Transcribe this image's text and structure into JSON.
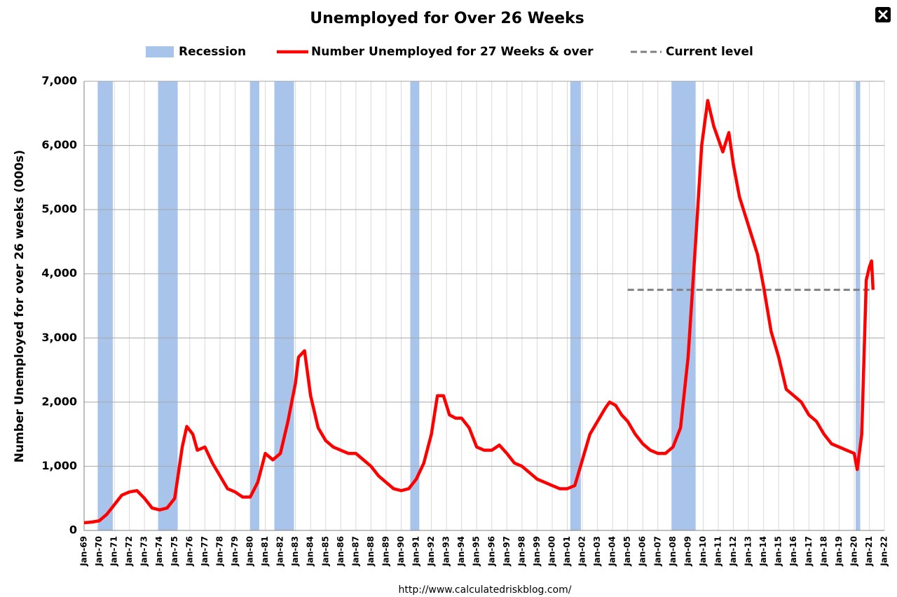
{
  "chart_data": {
    "type": "line",
    "title": "Unemployed for Over 26 Weeks",
    "y_label": "Number Unemployed for over 26 weeks (000s)",
    "source": "http://www.calculatedriskblog.com/",
    "xlim": [
      1969,
      2022
    ],
    "ylim": [
      0,
      7000
    ],
    "yticks": [
      0,
      {
        "value": 1000,
        "label": "1,000"
      },
      {
        "value": 2000,
        "label": "2,000"
      },
      {
        "value": 3000,
        "label": "3,000"
      },
      {
        "value": 4000,
        "label": "4,000"
      },
      {
        "value": 5000,
        "label": "5,000"
      },
      {
        "value": 6000,
        "label": "6,000"
      },
      {
        "value": 7000,
        "label": "7,000"
      }
    ],
    "xticks": [
      {
        "value": 1969,
        "label": "Jan-69"
      },
      {
        "value": 1970,
        "label": "Jan-70"
      },
      {
        "value": 1971,
        "label": "Jan-71"
      },
      {
        "value": 1972,
        "label": "Jan-72"
      },
      {
        "value": 1973,
        "label": "Jan-73"
      },
      {
        "value": 1974,
        "label": "Jan-74"
      },
      {
        "value": 1975,
        "label": "Jan-75"
      },
      {
        "value": 1976,
        "label": "Jan-76"
      },
      {
        "value": 1977,
        "label": "Jan-77"
      },
      {
        "value": 1978,
        "label": "Jan-78"
      },
      {
        "value": 1979,
        "label": "Jan-79"
      },
      {
        "value": 1980,
        "label": "Jan-80"
      },
      {
        "value": 1981,
        "label": "Jan-81"
      },
      {
        "value": 1982,
        "label": "Jan-82"
      },
      {
        "value": 1983,
        "label": "Jan-83"
      },
      {
        "value": 1984,
        "label": "Jan-84"
      },
      {
        "value": 1985,
        "label": "Jan-85"
      },
      {
        "value": 1986,
        "label": "Jan-86"
      },
      {
        "value": 1987,
        "label": "Jan-87"
      },
      {
        "value": 1988,
        "label": "Jan-88"
      },
      {
        "value": 1989,
        "label": "Jan-89"
      },
      {
        "value": 1990,
        "label": "Jan-90"
      },
      {
        "value": 1991,
        "label": "Jan-91"
      },
      {
        "value": 1992,
        "label": "Jan-92"
      },
      {
        "value": 1993,
        "label": "Jan-93"
      },
      {
        "value": 1994,
        "label": "Jan-94"
      },
      {
        "value": 1995,
        "label": "Jan-95"
      },
      {
        "value": 1996,
        "label": "Jan-96"
      },
      {
        "value": 1997,
        "label": "Jan-97"
      },
      {
        "value": 1998,
        "label": "Jan-98"
      },
      {
        "value": 1999,
        "label": "Jan-99"
      },
      {
        "value": 2000,
        "label": "Jan-00"
      },
      {
        "value": 2001,
        "label": "Jan-01"
      },
      {
        "value": 2002,
        "label": "Jan-02"
      },
      {
        "value": 2003,
        "label": "Jan-03"
      },
      {
        "value": 2004,
        "label": "Jan-04"
      },
      {
        "value": 2005,
        "label": "Jan-05"
      },
      {
        "value": 2006,
        "label": "Jan-06"
      },
      {
        "value": 2007,
        "label": "Jan-07"
      },
      {
        "value": 2008,
        "label": "Jan-08"
      },
      {
        "value": 2009,
        "label": "Jan-09"
      },
      {
        "value": 2010,
        "label": "Jan-10"
      },
      {
        "value": 2011,
        "label": "Jan-11"
      },
      {
        "value": 2012,
        "label": "Jan-12"
      },
      {
        "value": 2013,
        "label": "Jan-13"
      },
      {
        "value": 2014,
        "label": "Jan-14"
      },
      {
        "value": 2015,
        "label": "Jan-15"
      },
      {
        "value": 2016,
        "label": "Jan-16"
      },
      {
        "value": 2017,
        "label": "Jan-17"
      },
      {
        "value": 2018,
        "label": "Jan-18"
      },
      {
        "value": 2019,
        "label": "Jan-19"
      },
      {
        "value": 2020,
        "label": "Jan-20"
      },
      {
        "value": 2021,
        "label": "Jan-21"
      },
      {
        "value": 2022,
        "label": "Jan-22"
      }
    ],
    "grid": true,
    "recessions": {
      "name": "Recession",
      "color": "#a9c4eb",
      "ranges": [
        [
          1969.9,
          1970.9
        ],
        [
          1973.9,
          1975.2
        ],
        [
          1980.0,
          1980.6
        ],
        [
          1981.6,
          1982.9
        ],
        [
          1990.6,
          1991.2
        ],
        [
          2001.2,
          2001.9
        ],
        [
          2007.9,
          2009.5
        ],
        [
          2020.1,
          2020.4
        ]
      ]
    },
    "current_level": {
      "name": "Current level",
      "color": "#808080",
      "value": 3750,
      "x": [
        2005,
        2021.25
      ]
    },
    "series": [
      {
        "name": "Number Unemployed for 27 Weeks & over",
        "color": "#ff0000",
        "x": [
          1969.0,
          1969.5,
          1970.0,
          1970.5,
          1971.0,
          1971.5,
          1972.0,
          1972.5,
          1973.0,
          1973.5,
          1974.0,
          1974.5,
          1975.0,
          1975.5,
          1975.8,
          1976.2,
          1976.5,
          1977.0,
          1977.5,
          1978.0,
          1978.5,
          1979.0,
          1979.5,
          1980.0,
          1980.5,
          1981.0,
          1981.5,
          1982.0,
          1982.5,
          1983.0,
          1983.2,
          1983.6,
          1984.0,
          1984.5,
          1985.0,
          1985.5,
          1986.0,
          1986.5,
          1987.0,
          1987.5,
          1988.0,
          1988.5,
          1989.0,
          1989.5,
          1990.0,
          1990.5,
          1991.0,
          1991.5,
          1992.0,
          1992.4,
          1992.8,
          1993.2,
          1993.6,
          1994.0,
          1994.5,
          1995.0,
          1995.5,
          1996.0,
          1996.5,
          1997.0,
          1997.5,
          1998.0,
          1998.5,
          1999.0,
          1999.5,
          2000.0,
          2000.5,
          2001.0,
          2001.5,
          2002.0,
          2002.5,
          2003.0,
          2003.5,
          2003.8,
          2004.2,
          2004.6,
          2005.0,
          2005.5,
          2006.0,
          2006.5,
          2007.0,
          2007.5,
          2008.0,
          2008.5,
          2009.0,
          2009.5,
          2009.9,
          2010.3,
          2010.7,
          2011.0,
          2011.3,
          2011.7,
          2012.0,
          2012.4,
          2012.8,
          2013.2,
          2013.6,
          2014.0,
          2014.5,
          2015.0,
          2015.5,
          2016.0,
          2016.5,
          2017.0,
          2017.5,
          2018.0,
          2018.5,
          2019.0,
          2019.5,
          2020.0,
          2020.2,
          2020.5,
          2020.8,
          2021.0,
          2021.15,
          2021.25
        ],
        "values": [
          120,
          130,
          150,
          250,
          400,
          550,
          600,
          620,
          500,
          350,
          320,
          350,
          500,
          1300,
          1620,
          1500,
          1250,
          1300,
          1050,
          850,
          650,
          600,
          520,
          520,
          750,
          1200,
          1100,
          1200,
          1700,
          2300,
          2700,
          2800,
          2100,
          1600,
          1400,
          1300,
          1250,
          1200,
          1200,
          1100,
          1000,
          850,
          750,
          650,
          620,
          650,
          800,
          1050,
          1500,
          2100,
          2100,
          1800,
          1750,
          1750,
          1600,
          1300,
          1250,
          1250,
          1330,
          1200,
          1050,
          1000,
          900,
          800,
          750,
          700,
          650,
          650,
          700,
          1100,
          1500,
          1700,
          1900,
          2000,
          1950,
          1800,
          1700,
          1500,
          1350,
          1250,
          1200,
          1200,
          1300,
          1600,
          2700,
          4500,
          6000,
          6700,
          6300,
          6100,
          5900,
          6200,
          5700,
          5200,
          4900,
          4600,
          4300,
          3800,
          3100,
          2700,
          2200,
          2100,
          2000,
          1800,
          1700,
          1500,
          1350,
          1300,
          1250,
          1200,
          950,
          1500,
          3900,
          4100,
          4200,
          3750
        ]
      }
    ]
  }
}
